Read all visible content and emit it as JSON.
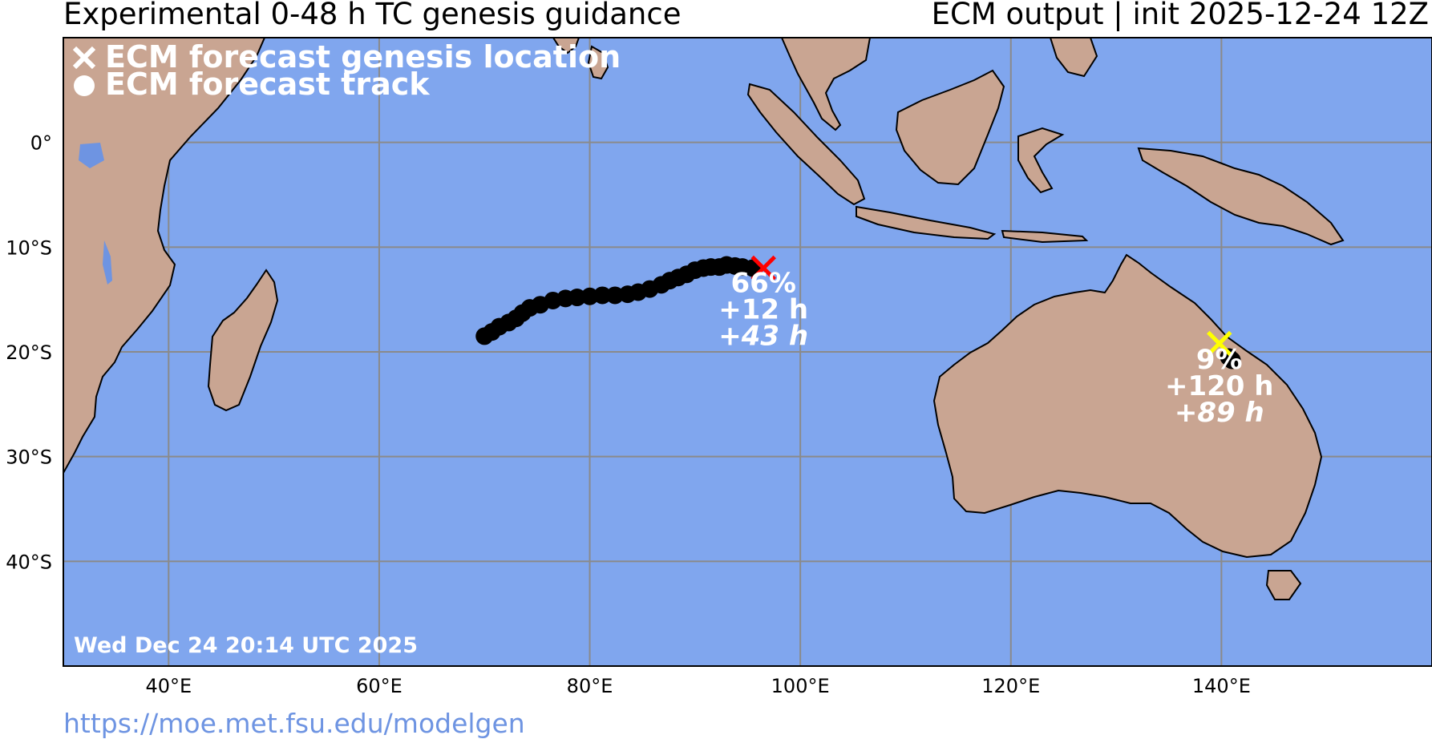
{
  "header": {
    "title": "Experimental 0-48 h TC genesis guidance",
    "subtitle": "ECM output | init 2025-12-24 12Z"
  },
  "legend": {
    "genesis_label": "ECM forecast genesis location",
    "track_label": "ECM forecast track",
    "genesis_icon": "x-mark-icon",
    "track_icon": "dot-icon"
  },
  "map": {
    "lon_range": [
      30,
      160
    ],
    "lat_range": [
      -50,
      10
    ],
    "ocean_color": "#80a6ee",
    "land_color": "#c9a592",
    "lon_ticks": [
      {
        "value": 40,
        "label": "40°E"
      },
      {
        "value": 60,
        "label": "60°E"
      },
      {
        "value": 80,
        "label": "80°E"
      },
      {
        "value": 100,
        "label": "100°E"
      },
      {
        "value": 120,
        "label": "120°E"
      },
      {
        "value": 140,
        "label": "140°E"
      }
    ],
    "lat_ticks": [
      {
        "value": 0,
        "label": "0°"
      },
      {
        "value": -10,
        "label": "10°S"
      },
      {
        "value": -20,
        "label": "20°S"
      },
      {
        "value": -30,
        "label": "30°S"
      },
      {
        "value": -40,
        "label": "40°S"
      }
    ],
    "grid": true
  },
  "storms": [
    {
      "genesis": {
        "lon": 96.5,
        "lat": -12.0
      },
      "marker_color": "#ff0000",
      "probability": "66%",
      "lead": "+12 h",
      "duration": "+43 h",
      "track": [
        [
          95.5,
          -12.0
        ],
        [
          94.5,
          -11.9
        ],
        [
          93.8,
          -11.8
        ],
        [
          93.0,
          -11.7
        ],
        [
          92.3,
          -11.9
        ],
        [
          91.5,
          -11.9
        ],
        [
          90.8,
          -12.0
        ],
        [
          90.0,
          -12.2
        ],
        [
          89.2,
          -12.6
        ],
        [
          88.4,
          -12.9
        ],
        [
          87.6,
          -13.2
        ],
        [
          86.8,
          -13.6
        ],
        [
          85.7,
          -14.0
        ],
        [
          84.6,
          -14.3
        ],
        [
          83.6,
          -14.5
        ],
        [
          82.4,
          -14.6
        ],
        [
          81.2,
          -14.6
        ],
        [
          80.0,
          -14.7
        ],
        [
          78.8,
          -14.8
        ],
        [
          77.7,
          -14.9
        ],
        [
          76.5,
          -15.1
        ],
        [
          75.3,
          -15.5
        ],
        [
          74.3,
          -15.8
        ],
        [
          73.6,
          -16.3
        ],
        [
          73.0,
          -16.8
        ],
        [
          72.3,
          -17.2
        ],
        [
          71.4,
          -17.6
        ],
        [
          70.7,
          -18.1
        ],
        [
          70.0,
          -18.5
        ]
      ],
      "label_anchor": {
        "lon": 96.5,
        "lat": -14.3
      }
    },
    {
      "genesis": {
        "lon": 139.8,
        "lat": -19.2
      },
      "marker_color": "#ffff00",
      "probability": "9%",
      "lead": "+120 h",
      "duration": "+89 h",
      "track": [
        [
          140.7,
          -20.5
        ],
        [
          141.0,
          -20.8
        ]
      ],
      "label_anchor": {
        "lon": 139.8,
        "lat": -21.6
      }
    }
  ],
  "timestamp": "Wed Dec 24 20:14 UTC 2025",
  "source_url": "https://moe.met.fsu.edu/modelgen"
}
